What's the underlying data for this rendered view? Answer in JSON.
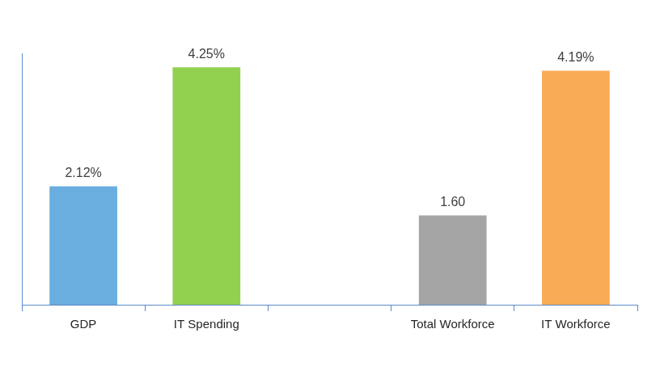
{
  "chart_data": {
    "type": "bar",
    "categories": [
      "GDP",
      "IT Spending",
      null,
      "Total Workforce",
      "IT Workforce"
    ],
    "values": [
      2.12,
      4.25,
      null,
      1.6,
      4.19
    ],
    "value_labels": [
      "2.12%",
      "4.25%",
      null,
      "1.60",
      "4.19%"
    ],
    "colors": [
      "#6aaddf",
      "#92d050",
      null,
      "#a5a5a5",
      "#f9ab55"
    ],
    "ylim": [
      0,
      4.5
    ],
    "grid": false,
    "data_labels": true,
    "tick_labels": "x"
  }
}
